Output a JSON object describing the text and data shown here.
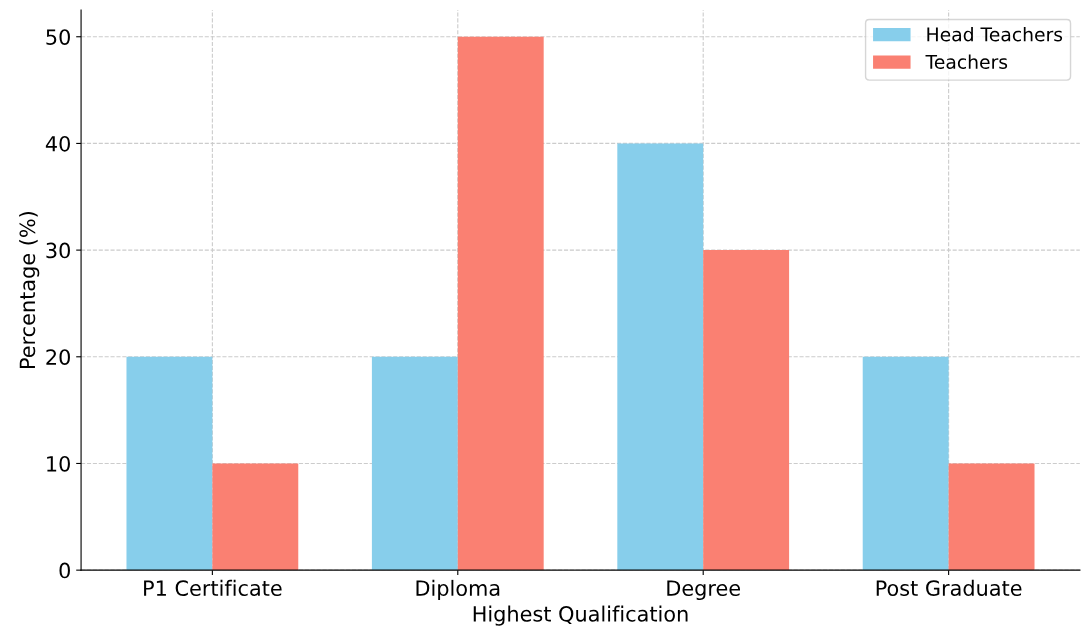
{
  "chart_data": {
    "type": "bar",
    "xlabel": "Highest Qualification",
    "ylabel": "Percentage (%)",
    "categories": [
      "P1 Certificate",
      "Diploma",
      "Degree",
      "Post Graduate"
    ],
    "series": [
      {
        "name": "Head Teachers",
        "color": "#87ceeb",
        "values": [
          20,
          20,
          40,
          20
        ]
      },
      {
        "name": "Teachers",
        "color": "#fa8072",
        "values": [
          10,
          50,
          30,
          10
        ]
      }
    ],
    "ylim": [
      0,
      52.5
    ],
    "yticks": [
      0,
      10,
      20,
      30,
      40,
      50
    ],
    "grid": true,
    "legend": "top right"
  }
}
